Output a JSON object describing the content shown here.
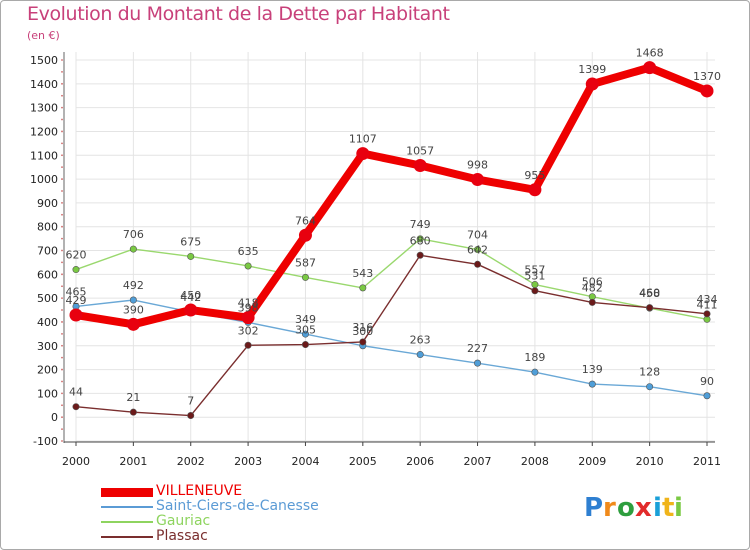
{
  "chart_data": {
    "type": "line",
    "title": "Evolution du Montant de la Dette par Habitant",
    "subtitle": "(en €)",
    "x": [
      "2000",
      "2001",
      "2002",
      "2003",
      "2004",
      "2005",
      "2006",
      "2007",
      "2008",
      "2009",
      "2010",
      "2011"
    ],
    "ylim": [
      -100,
      1500
    ],
    "yticks": [
      -100,
      0,
      100,
      200,
      300,
      400,
      500,
      600,
      700,
      800,
      900,
      1000,
      1100,
      1200,
      1300,
      1400,
      1500
    ],
    "grid": true,
    "legend_position": "bottom-left",
    "series": [
      {
        "name": "Saint-Ciers-de-Canesse",
        "color": "#4f9ed8",
        "line_color": "#6aa8d6",
        "values": [
          465,
          492,
          442,
          398,
          349,
          300,
          263,
          227,
          189,
          139,
          128,
          90
        ]
      },
      {
        "name": "Gauriac",
        "color": "#7ac943",
        "line_color": "#9ad86e",
        "values": [
          620,
          706,
          675,
          635,
          587,
          543,
          749,
          704,
          557,
          506,
          458,
          411
        ]
      },
      {
        "name": "Plassac",
        "color": "#6b1a1a",
        "line_color": "#7a2e2e",
        "values": [
          44,
          21,
          7,
          302,
          305,
          316,
          680,
          642,
          531,
          482,
          460,
          434
        ]
      },
      {
        "name": "VILLENEUVE",
        "color": "#e8000f",
        "line_color": "#ee0000",
        "values": [
          429,
          390,
          450,
          418,
          764,
          1107,
          1057,
          998,
          955,
          1399,
          1468,
          1370
        ]
      }
    ]
  },
  "legend_items": [
    {
      "label": "VILLENEUVE",
      "color": "#ee0000"
    },
    {
      "label": "Saint-Ciers-de-Canesse",
      "color": "#5b9bd5"
    },
    {
      "label": "Gauriac",
      "color": "#8ed45f"
    },
    {
      "label": "Plassac",
      "color": "#7a2e2e"
    }
  ],
  "brand": {
    "letters": [
      "P",
      "r",
      "o",
      "x",
      "i",
      "t",
      "i"
    ],
    "colors": [
      "#2e7fd1",
      "#f08a1a",
      "#2e9e3e",
      "#e22b2b",
      "#1aa0d8",
      "#f0b41a",
      "#7ac943"
    ]
  }
}
